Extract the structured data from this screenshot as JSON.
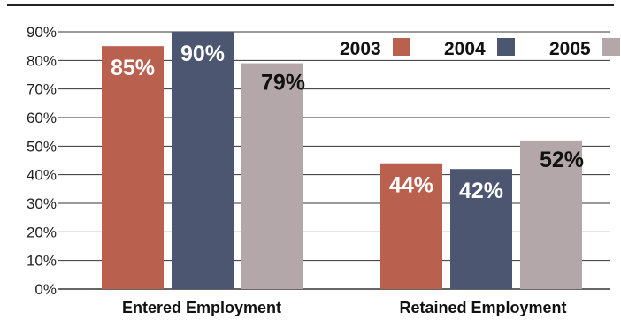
{
  "chart_data": {
    "type": "bar",
    "categories": [
      "Entered Employment",
      "Retained Employment"
    ],
    "series": [
      {
        "name": "2003",
        "values": [
          85,
          44
        ],
        "labels": [
          "85%",
          "44%"
        ],
        "color": "#b9614e"
      },
      {
        "name": "2004",
        "values": [
          90,
          42
        ],
        "labels": [
          "90%",
          "42%"
        ],
        "color": "#4d5670"
      },
      {
        "name": "2005",
        "values": [
          79,
          52
        ],
        "labels": [
          "79%",
          "52%"
        ],
        "color": "#b3a7a9"
      }
    ],
    "title": "",
    "xlabel": "",
    "ylabel": "",
    "ylim": [
      0,
      90
    ],
    "yticks": [
      "0%",
      "10%",
      "20%",
      "30%",
      "40%",
      "50%",
      "60%",
      "70%",
      "80%",
      "90%"
    ],
    "grid": true,
    "legend_position": "top-right"
  }
}
